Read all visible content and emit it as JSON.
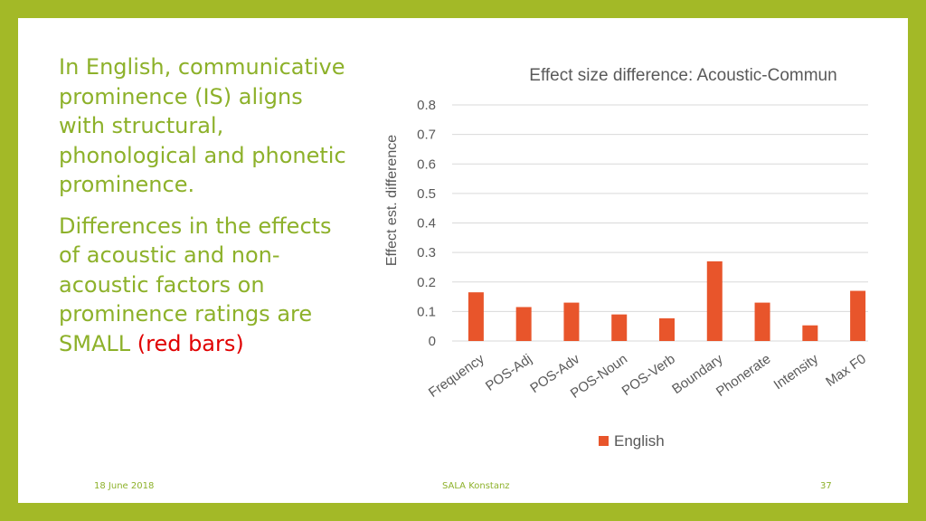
{
  "slide": {
    "paragraph1": "In English, communicative prominence (IS) aligns with structural, phonological and phonetic prominence.",
    "paragraph2_main": "Differences in the effects of acoustic and non-acoustic factors on prominence ratings are SMALL ",
    "paragraph2_red": "(red bars)"
  },
  "footer": {
    "date": "18 June  2018",
    "center": "SALA Konstanz",
    "page": "37"
  },
  "colors": {
    "frame": "#a3b927",
    "text_green": "#8db12a",
    "highlight_red": "#e00000",
    "bar": "#e8552b"
  },
  "chart_data": {
    "type": "bar",
    "title": "Effect size difference: Acoustic-Commun",
    "ylabel": "Effect est. difference",
    "xlabel": "",
    "ylim": [
      0,
      0.8
    ],
    "yticks": [
      "0",
      "0.1",
      "0.2",
      "0.3",
      "0.4",
      "0.5",
      "0.6",
      "0.7",
      "0.8"
    ],
    "categories": [
      "Frequency",
      "POS-Adj",
      "POS-Adv",
      "POS-Noun",
      "POS-Verb",
      "Boundary",
      "Phonerate",
      "Intensity",
      "Max F0"
    ],
    "series": [
      {
        "name": "English",
        "values": [
          0.165,
          0.115,
          0.13,
          0.09,
          0.077,
          0.27,
          0.13,
          0.053,
          0.17
        ]
      }
    ],
    "grid": true,
    "legend": "bottom"
  }
}
